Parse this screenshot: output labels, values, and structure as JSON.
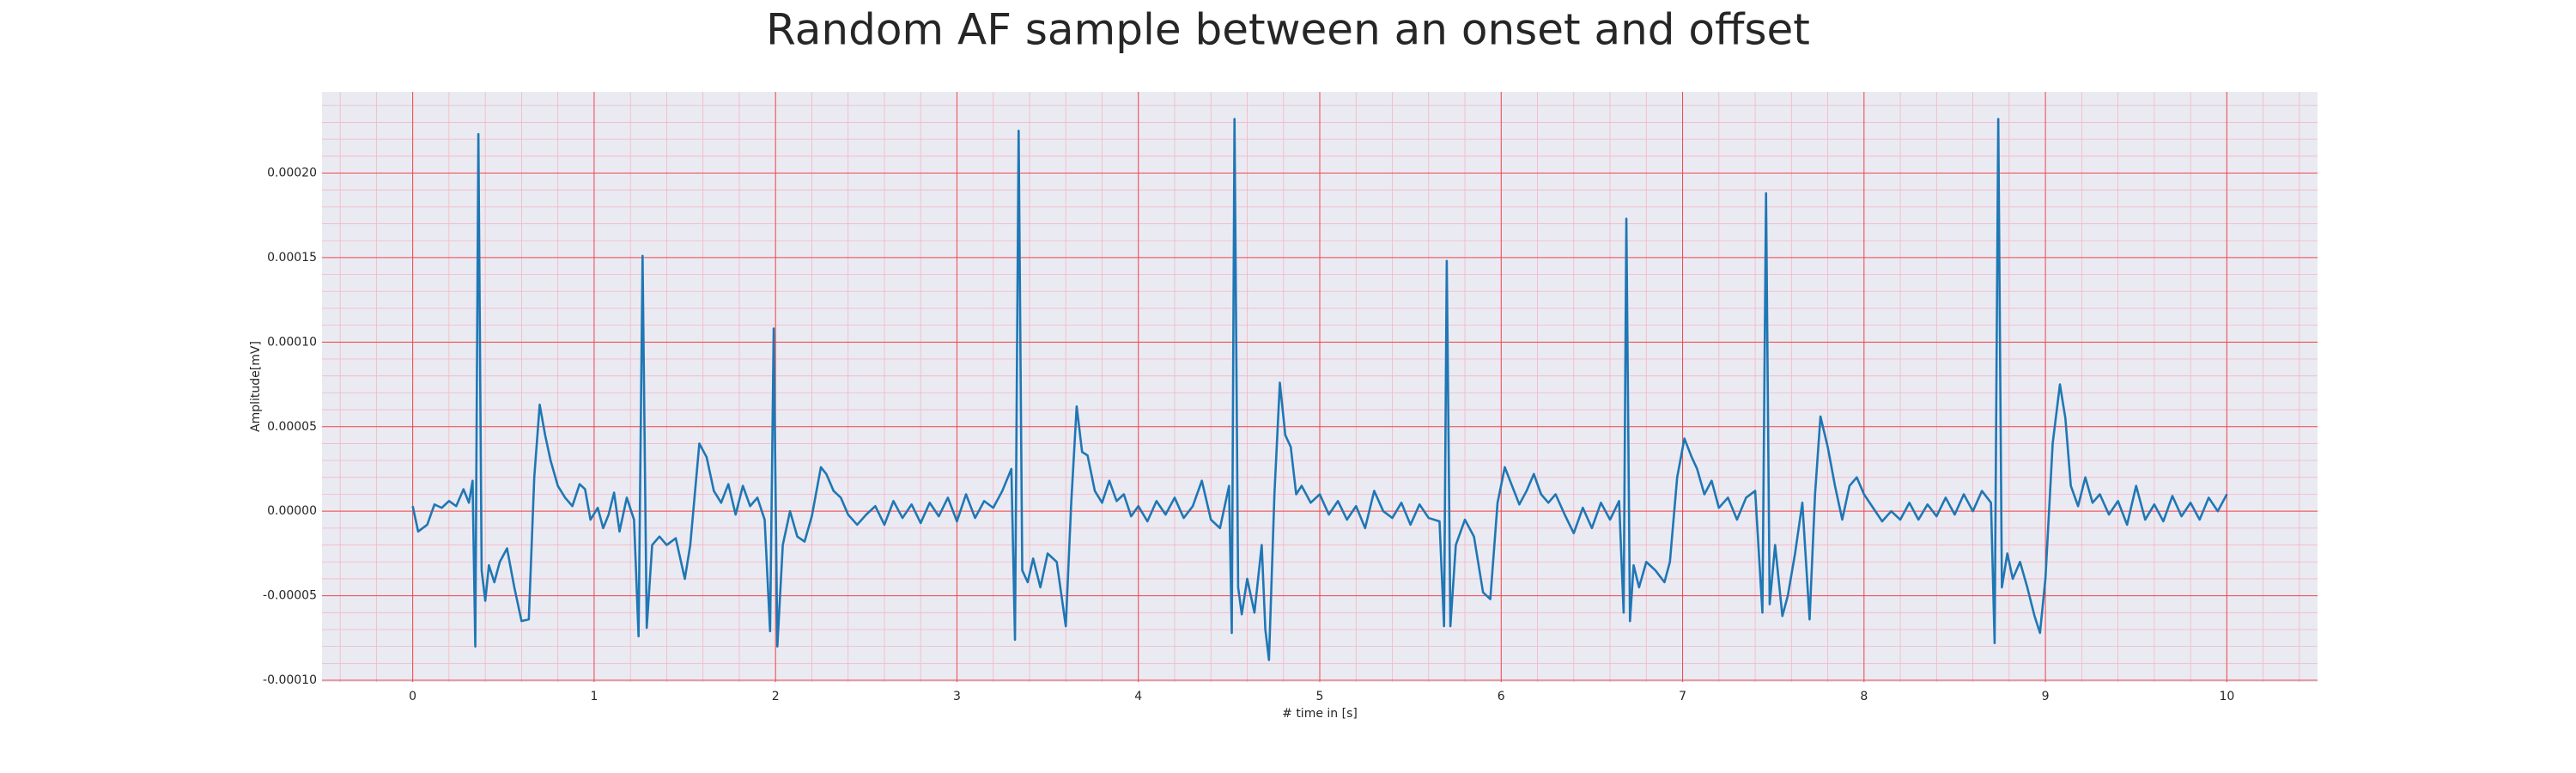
{
  "chart_data": {
    "type": "line",
    "title": "Random AF sample between an onset and offset",
    "xlabel": "# time in [s]",
    "ylabel": "Amplitude[mV]",
    "color": "#1f77b4",
    "grid": true,
    "minor_grid": true,
    "xlim": [
      -0.5,
      10.5
    ],
    "ylim": [
      -0.000101,
      0.000248
    ],
    "xticks": [
      0,
      1,
      2,
      3,
      4,
      5,
      6,
      7,
      8,
      9,
      10
    ],
    "yticks": [
      {
        "value": -0.0001,
        "label": "-0.00010"
      },
      {
        "value": -5e-05,
        "label": "-0.00005"
      },
      {
        "value": 0,
        "label": "0.00000"
      },
      {
        "value": 5e-05,
        "label": "0.00005"
      },
      {
        "value": 0.0001,
        "label": "0.00010"
      },
      {
        "value": 0.00015,
        "label": "0.00015"
      },
      {
        "value": 0.0002,
        "label": "0.00020"
      }
    ],
    "x": [
      0,
      0.03,
      0.08,
      0.12,
      0.16,
      0.2,
      0.24,
      0.28,
      0.31,
      0.33,
      0.345,
      0.362,
      0.38,
      0.4,
      0.42,
      0.45,
      0.48,
      0.52,
      0.56,
      0.6,
      0.64,
      0.67,
      0.7,
      0.73,
      0.76,
      0.8,
      0.84,
      0.88,
      0.92,
      0.95,
      0.98,
      1.02,
      1.05,
      1.08,
      1.11,
      1.14,
      1.18,
      1.22,
      1.245,
      1.267,
      1.29,
      1.32,
      1.36,
      1.4,
      1.45,
      1.5,
      1.53,
      1.58,
      1.62,
      1.66,
      1.7,
      1.74,
      1.78,
      1.82,
      1.86,
      1.9,
      1.94,
      1.97,
      1.99,
      2.01,
      2.04,
      2.08,
      2.12,
      2.16,
      2.2,
      2.25,
      2.28,
      2.32,
      2.36,
      2.4,
      2.45,
      2.5,
      2.55,
      2.6,
      2.65,
      2.7,
      2.75,
      2.8,
      2.85,
      2.9,
      2.95,
      3.0,
      3.05,
      3.1,
      3.15,
      3.2,
      3.25,
      3.3,
      3.32,
      3.34,
      3.36,
      3.39,
      3.42,
      3.46,
      3.5,
      3.55,
      3.6,
      3.63,
      3.66,
      3.69,
      3.72,
      3.76,
      3.8,
      3.84,
      3.88,
      3.92,
      3.96,
      4.0,
      4.05,
      4.1,
      4.15,
      4.2,
      4.25,
      4.3,
      4.35,
      4.4,
      4.45,
      4.5,
      4.515,
      4.53,
      4.55,
      4.57,
      4.6,
      4.64,
      4.68,
      4.7,
      4.72,
      4.75,
      4.78,
      4.81,
      4.84,
      4.87,
      4.9,
      4.95,
      5.0,
      5.05,
      5.1,
      5.15,
      5.2,
      5.25,
      5.3,
      5.35,
      5.4,
      5.45,
      5.5,
      5.55,
      5.6,
      5.66,
      5.685,
      5.7,
      5.72,
      5.75,
      5.8,
      5.85,
      5.9,
      5.94,
      5.98,
      6.02,
      6.06,
      6.1,
      6.14,
      6.18,
      6.22,
      6.26,
      6.3,
      6.35,
      6.4,
      6.45,
      6.5,
      6.55,
      6.6,
      6.65,
      6.675,
      6.69,
      6.71,
      6.73,
      6.76,
      6.8,
      6.85,
      6.9,
      6.93,
      6.97,
      7.01,
      7.05,
      7.08,
      7.12,
      7.16,
      7.2,
      7.25,
      7.3,
      7.35,
      7.4,
      7.44,
      7.46,
      7.48,
      7.51,
      7.55,
      7.58,
      7.62,
      7.66,
      7.7,
      7.73,
      7.76,
      7.8,
      7.84,
      7.88,
      7.92,
      7.96,
      8.0,
      8.05,
      8.1,
      8.15,
      8.2,
      8.25,
      8.3,
      8.35,
      8.4,
      8.45,
      8.5,
      8.55,
      8.6,
      8.65,
      8.7,
      8.72,
      8.74,
      8.76,
      8.79,
      8.82,
      8.86,
      8.9,
      8.94,
      8.97,
      9.0,
      9.04,
      9.08,
      9.11,
      9.14,
      9.18,
      9.22,
      9.26,
      9.3,
      9.35,
      9.4,
      9.45,
      9.5,
      9.55,
      9.6,
      9.65,
      9.7,
      9.75,
      9.8,
      9.85,
      9.9,
      9.95,
      10.0
    ],
    "values": [
      3e-06,
      -1.2e-05,
      -8e-06,
      4e-06,
      2e-06,
      6e-06,
      3e-06,
      1.3e-05,
      5e-06,
      1.8e-05,
      -8e-05,
      0.000223,
      -3.5e-05,
      -5.3e-05,
      -3.2e-05,
      -4.2e-05,
      -3e-05,
      -2.2e-05,
      -4.5e-05,
      -6.5e-05,
      -6.4e-05,
      2e-05,
      6.3e-05,
      4.5e-05,
      3e-05,
      1.5e-05,
      8e-06,
      3e-06,
      1.6e-05,
      1.3e-05,
      -5e-06,
      2e-06,
      -1e-05,
      -2e-06,
      1.1e-05,
      -1.2e-05,
      8e-06,
      -5e-06,
      -7.4e-05,
      0.000151,
      -6.9e-05,
      -2e-05,
      -1.5e-05,
      -2e-05,
      -1.6e-05,
      -4e-05,
      -2e-05,
      4e-05,
      3.2e-05,
      1.2e-05,
      5e-06,
      1.6e-05,
      -2e-06,
      1.5e-05,
      3e-06,
      8e-06,
      -5e-06,
      -7.1e-05,
      0.000108,
      -8e-05,
      -2e-05,
      0.0,
      -1.5e-05,
      -1.8e-05,
      -3e-06,
      2.6e-05,
      2.2e-05,
      1.2e-05,
      8e-06,
      -2e-06,
      -8e-06,
      -2e-06,
      3e-06,
      -8e-06,
      6e-06,
      -4e-06,
      4e-06,
      -7e-06,
      5e-06,
      -3e-06,
      8e-06,
      -6e-06,
      1e-05,
      -4e-06,
      6e-06,
      2e-06,
      1.2e-05,
      2.5e-05,
      -7.6e-05,
      0.000225,
      -3.5e-05,
      -4.2e-05,
      -2.8e-05,
      -4.5e-05,
      -2.5e-05,
      -3e-05,
      -6.8e-05,
      5e-06,
      6.2e-05,
      3.5e-05,
      3.3e-05,
      1.2e-05,
      5e-06,
      1.8e-05,
      6e-06,
      1e-05,
      -3e-06,
      3e-06,
      -6e-06,
      6e-06,
      -2e-06,
      8e-06,
      -4e-06,
      3e-06,
      1.8e-05,
      -5e-06,
      -1e-05,
      1.5e-05,
      -7.2e-05,
      0.000232,
      -4.5e-05,
      -6.1e-05,
      -4e-05,
      -6e-05,
      -2e-05,
      -7e-05,
      -8.8e-05,
      1e-05,
      7.6e-05,
      4.5e-05,
      3.8e-05,
      1e-05,
      1.5e-05,
      5e-06,
      1e-05,
      -2e-06,
      6e-06,
      -5e-06,
      3e-06,
      -1e-05,
      1.2e-05,
      0.0,
      -4e-06,
      5e-06,
      -8e-06,
      4e-06,
      -4e-06,
      -6e-06,
      -6.8e-05,
      0.000148,
      -6.8e-05,
      -2e-05,
      -5e-06,
      -1.5e-05,
      -4.8e-05,
      -5.2e-05,
      5e-06,
      2.6e-05,
      1.5e-05,
      4e-06,
      1.2e-05,
      2.2e-05,
      1e-05,
      5e-06,
      1e-05,
      -2e-06,
      -1.3e-05,
      2e-06,
      -1e-05,
      5e-06,
      -5e-06,
      6e-06,
      -6e-05,
      0.000173,
      -6.5e-05,
      -3.2e-05,
      -4.5e-05,
      -3e-05,
      -3.5e-05,
      -4.2e-05,
      -3e-05,
      2e-05,
      4.3e-05,
      3.2e-05,
      2.5e-05,
      1e-05,
      1.8e-05,
      2e-06,
      8e-06,
      -5e-06,
      8e-06,
      1.2e-05,
      -6e-05,
      0.000188,
      -5.5e-05,
      -2e-05,
      -6.2e-05,
      -5e-05,
      -2.5e-05,
      5e-06,
      -6.4e-05,
      1e-05,
      5.6e-05,
      3.8e-05,
      1.5e-05,
      -5e-06,
      1.5e-05,
      2e-05,
      1e-05,
      2e-06,
      -6e-06,
      0.0,
      -5e-06,
      5e-06,
      -5e-06,
      4e-06,
      -3e-06,
      8e-06,
      -2e-06,
      1e-05,
      0.0,
      1.2e-05,
      5e-06,
      -7.8e-05,
      0.000232,
      -4.5e-05,
      -2.5e-05,
      -4e-05,
      -3e-05,
      -4.5e-05,
      -6.2e-05,
      -7.2e-05,
      -4e-05,
      4e-05,
      7.5e-05,
      5.5e-05,
      1.5e-05,
      3e-06,
      2e-05,
      5e-06,
      1e-05,
      -2e-06,
      6e-06,
      -8e-06,
      1.5e-05,
      -5e-06,
      4e-06,
      -6e-06,
      9e-06,
      -3e-06,
      5e-06,
      -5e-06,
      8e-06,
      0.0,
      1e-05
    ]
  }
}
